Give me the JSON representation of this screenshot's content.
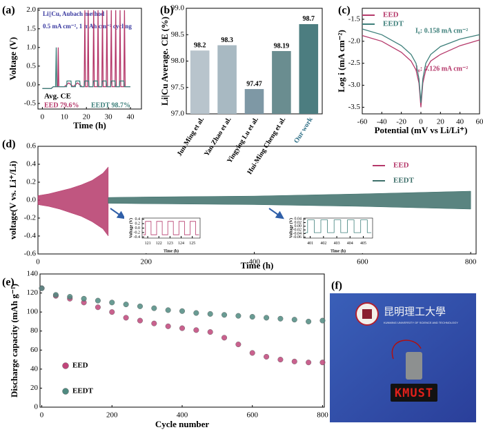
{
  "chart_data": [
    {
      "type": "line",
      "panel_label": "(a)",
      "title": "Li||Cu, Aubach method",
      "subtitle": "0.5 mA cm⁻², 1 mAh cm⁻² cycling",
      "xlabel": "Time (h)",
      "ylabel": "Voltage (V)",
      "xlim": [
        -2,
        45
      ],
      "xticks": [
        0,
        10,
        20,
        30,
        40
      ],
      "ylim": [
        -0.65,
        2.05
      ],
      "yticks": [
        -0.5,
        {
          "value": 0,
          "label": "0.0"
        },
        0.5,
        {
          "value": 1,
          "label": "1.0"
        },
        1.5,
        {
          "value": 2,
          "label": "2.0"
        }
      ],
      "annotations": [
        {
          "text": "Avg. CE",
          "color": "#000000"
        },
        {
          "text": "EED   79.6%",
          "color": "#b5386a"
        },
        {
          "text": "EEDT 98.7%",
          "color": "#3d7f7a"
        }
      ],
      "series": [
        {
          "name": "EED",
          "color": "#b5386a",
          "x": [
            0,
            4,
            5,
            7,
            7.2,
            7.5,
            10,
            12,
            14,
            16,
            18,
            19,
            19.3,
            19.6,
            20.5,
            20.8,
            21.1,
            23,
            23.3,
            23.6,
            25,
            25.3,
            25.6,
            27,
            27.3,
            27.6,
            29,
            29.3,
            29.6,
            31,
            31.3,
            31.6,
            33,
            33.3,
            33.6,
            35,
            35.3,
            35.6,
            37,
            37.3,
            37.6,
            40
          ],
          "values": [
            -0.1,
            -0.1,
            -0.05,
            -0.05,
            1.0,
            -0.05,
            -0.05,
            0.05,
            -0.05,
            0.05,
            -0.05,
            -0.05,
            2.0,
            -0.05,
            -0.05,
            2.0,
            -0.05,
            -0.05,
            2.0,
            -0.05,
            -0.05,
            2.0,
            -0.05,
            -0.05,
            2.0,
            -0.05,
            -0.05,
            2.0,
            -0.05,
            -0.05,
            2.0,
            -0.05,
            -0.05,
            2.0,
            -0.05,
            -0.05,
            2.0,
            -0.05,
            -0.05,
            2.0,
            -0.05,
            -0.05
          ]
        },
        {
          "name": "EEDT",
          "color": "#3d7f7a",
          "x": [
            0,
            4,
            5,
            6,
            6.3,
            6.6,
            7,
            10,
            11,
            11.2,
            13,
            13.2,
            15,
            15.2,
            17,
            17.2,
            19,
            19.2,
            21,
            21.2,
            23,
            23.2,
            25,
            25.2,
            27,
            27.2,
            29,
            29.2,
            31,
            31.2,
            33,
            33.2,
            35,
            35.2,
            37,
            37.2,
            39,
            40
          ],
          "values": [
            -0.1,
            -0.1,
            -0.05,
            -0.05,
            1.0,
            -0.05,
            -0.05,
            -0.05,
            -0.05,
            0.1,
            0.1,
            -0.05,
            -0.05,
            0.1,
            0.1,
            -0.05,
            -0.05,
            0.1,
            0.1,
            -0.05,
            -0.05,
            0.1,
            0.1,
            -0.05,
            -0.05,
            0.1,
            0.1,
            -0.05,
            -0.05,
            0.1,
            0.1,
            -0.05,
            -0.05,
            0.1,
            0.1,
            -0.05,
            -0.05,
            -0.05
          ]
        }
      ]
    },
    {
      "type": "bar",
      "panel_label": "(b)",
      "ylabel": "Li|Cu Average. CE (%)",
      "categories": [
        "Jun Ming et al.",
        "Yan Zhao et al.",
        "Yingying Lu et al.",
        "Hui-Ming Cheng et al.",
        "Our work"
      ],
      "values": [
        98.2,
        98.3,
        97.47,
        98.19,
        98.7
      ],
      "colors": [
        "#b8c4cc",
        "#a8b9c2",
        "#7e98a5",
        "#6a8d90",
        "#4c7d80"
      ],
      "category_colors": [
        "#000000",
        "#000000",
        "#000000",
        "#000000",
        "#2e6f86"
      ],
      "ylim": [
        97,
        99
      ],
      "yticks": [
        {
          "value": 97,
          "label": "97.0"
        },
        97.5,
        {
          "value": 98,
          "label": "98.0"
        },
        98.5,
        {
          "value": 99,
          "label": "99.0"
        }
      ]
    },
    {
      "type": "line",
      "panel_label": "(c)",
      "xlabel": "Potential (mV vs Li/Li⁺)",
      "ylabel": "Log i (mA cm⁻²)",
      "legend": true,
      "xlim": [
        -60,
        60
      ],
      "xticks": [
        -60,
        -40,
        -20,
        0,
        20,
        40,
        60
      ],
      "ylim": [
        -3.65,
        -1.25
      ],
      "yticks": [
        -3.5,
        {
          "value": -3,
          "label": "-3.0"
        },
        -2.5,
        {
          "value": -2,
          "label": "-2.0"
        },
        -1.5
      ],
      "annotations": [
        {
          "text": "I₀: 0.158 mA cm⁻²",
          "color": "#3d7f7a"
        },
        {
          "text": "I₀: 0.126 mA cm⁻²",
          "color": "#b5386a"
        }
      ],
      "x": [
        -60,
        -40,
        -20,
        -10,
        -5,
        -2,
        0,
        2,
        5,
        10,
        20,
        40,
        60
      ],
      "series": [
        {
          "name": "EED",
          "color": "#b5386a",
          "values": [
            -1.87,
            -2.0,
            -2.25,
            -2.45,
            -2.65,
            -2.95,
            -3.5,
            -2.95,
            -2.65,
            -2.45,
            -2.3,
            -2.1,
            -1.97
          ]
        },
        {
          "name": "EEDT",
          "color": "#3d7f7a",
          "values": [
            -1.72,
            -1.85,
            -2.1,
            -2.3,
            -2.5,
            -2.85,
            -3.4,
            -2.85,
            -2.5,
            -2.3,
            -2.12,
            -1.95,
            -1.85
          ]
        }
      ]
    },
    {
      "type": "area",
      "panel_label": "(d)",
      "xlabel": "Time (h)",
      "ylabel": "voltage(V vs. Li⁺/Li)",
      "legend": true,
      "xlim": [
        0,
        810
      ],
      "xticks": [
        0,
        200,
        400,
        600,
        800
      ],
      "ylim": [
        -0.6,
        0.6
      ],
      "yticks": [
        -0.6,
        -0.4,
        -0.2,
        {
          "value": 0,
          "label": "0.0"
        },
        0.2,
        0.4,
        0.6
      ],
      "series": [
        {
          "name": "EED",
          "color": "#b5386a",
          "x": [
            0,
            20,
            40,
            60,
            80,
            100,
            120,
            130
          ],
          "values": [
            0.05,
            0.07,
            0.1,
            0.13,
            0.17,
            0.22,
            0.3,
            0.37
          ],
          "lower_values": [
            -0.05,
            -0.07,
            -0.1,
            -0.14,
            -0.18,
            -0.24,
            -0.32,
            -0.4
          ]
        },
        {
          "name": "EEDT",
          "color": "#3d6f6a",
          "x": [
            130,
            200,
            400,
            600,
            800
          ],
          "values": [
            0.03,
            0.035,
            0.045,
            0.07,
            0.1
          ],
          "lower_values": [
            -0.035,
            -0.04,
            -0.05,
            -0.07,
            -0.1
          ]
        }
      ]
    },
    {
      "type": "line",
      "xlabel": "Time (h)",
      "ylabel": "Voltage (V)",
      "xlim": [
        120.5,
        125.7
      ],
      "xticks": [
        121,
        122,
        123,
        124,
        125
      ],
      "ylim": [
        -0.45,
        0.45
      ],
      "yticks": [
        -0.4,
        -0.2,
        {
          "value": 0,
          "label": "0.0"
        },
        0.2,
        0.4
      ],
      "series": [
        {
          "name": "EED",
          "color": "#b5386a",
          "x": [
            120.6,
            120.8,
            120.8,
            121.3,
            121.3,
            121.8,
            121.8,
            122.3,
            122.3,
            122.8,
            122.8,
            123.3,
            123.3,
            123.8,
            123.8,
            124.3,
            124.3,
            124.8,
            124.8,
            125.3,
            125.3,
            125.6
          ],
          "values": [
            -0.3,
            -0.3,
            0.3,
            0.3,
            -0.3,
            -0.3,
            0.3,
            0.3,
            -0.3,
            -0.3,
            0.3,
            0.3,
            -0.3,
            -0.3,
            0.3,
            0.3,
            -0.3,
            -0.3,
            0.3,
            0.3,
            -0.3,
            -0.3
          ]
        }
      ]
    },
    {
      "type": "line",
      "xlabel": "Time (h)",
      "ylabel": "Voltage (V)",
      "xlim": [
        400.5,
        405.7
      ],
      "xticks": [
        401,
        402,
        403,
        404,
        405
      ],
      "ylim": [
        -0.065,
        0.045
      ],
      "yticks": [
        -0.06,
        -0.04,
        -0.02,
        {
          "value": 0,
          "label": "0.00"
        },
        0.02,
        0.04
      ],
      "series": [
        {
          "name": "EEDT",
          "color": "#3d7f7a",
          "x": [
            400.6,
            400.8,
            400.8,
            401.3,
            401.3,
            401.8,
            401.8,
            402.3,
            402.3,
            402.8,
            402.8,
            403.3,
            403.3,
            403.8,
            403.8,
            404.3,
            404.3,
            404.8,
            404.8,
            405.3,
            405.3,
            405.6
          ],
          "values": [
            -0.035,
            -0.035,
            0.035,
            0.035,
            -0.035,
            -0.035,
            0.035,
            0.035,
            -0.035,
            -0.035,
            0.035,
            0.035,
            -0.035,
            -0.035,
            0.035,
            0.035,
            -0.035,
            -0.035,
            0.035,
            0.035,
            -0.035,
            -0.035
          ]
        }
      ]
    },
    {
      "type": "scatter",
      "panel_label": "(e)",
      "xlabel": "Cycle number",
      "ylabel": "Discharge capacity (mAh g⁻¹)",
      "legend": true,
      "xlim": [
        -5,
        805
      ],
      "xticks": [
        0,
        200,
        400,
        600,
        800
      ],
      "ylim": [
        0,
        140
      ],
      "yticks": [
        0,
        20,
        40,
        60,
        80,
        100,
        120,
        140
      ],
      "x": [
        0,
        40,
        80,
        120,
        160,
        200,
        240,
        280,
        320,
        360,
        400,
        440,
        480,
        520,
        560,
        600,
        640,
        680,
        720,
        760,
        800
      ],
      "series": [
        {
          "name": "EED",
          "color": "#c0457a",
          "values": [
            125,
            117,
            114,
            110,
            105,
            100,
            94,
            91,
            88,
            85,
            83,
            81,
            79,
            73,
            66,
            57,
            53,
            50,
            48,
            47,
            47
          ]
        },
        {
          "name": "EEDT",
          "color": "#4f8a80",
          "values": [
            125,
            118,
            116,
            114,
            112,
            110,
            108,
            106,
            104,
            102,
            101,
            99,
            98,
            97,
            96,
            95,
            94,
            93,
            92,
            90,
            91
          ]
        }
      ]
    }
  ],
  "photo": {
    "panel_label": "(f)",
    "university_name": "昆明理工大學",
    "university_name_en": "KUNMING UNIVERSITY OF SCIENCE AND TECHNOLOGY",
    "sign_text": "KMUST"
  }
}
